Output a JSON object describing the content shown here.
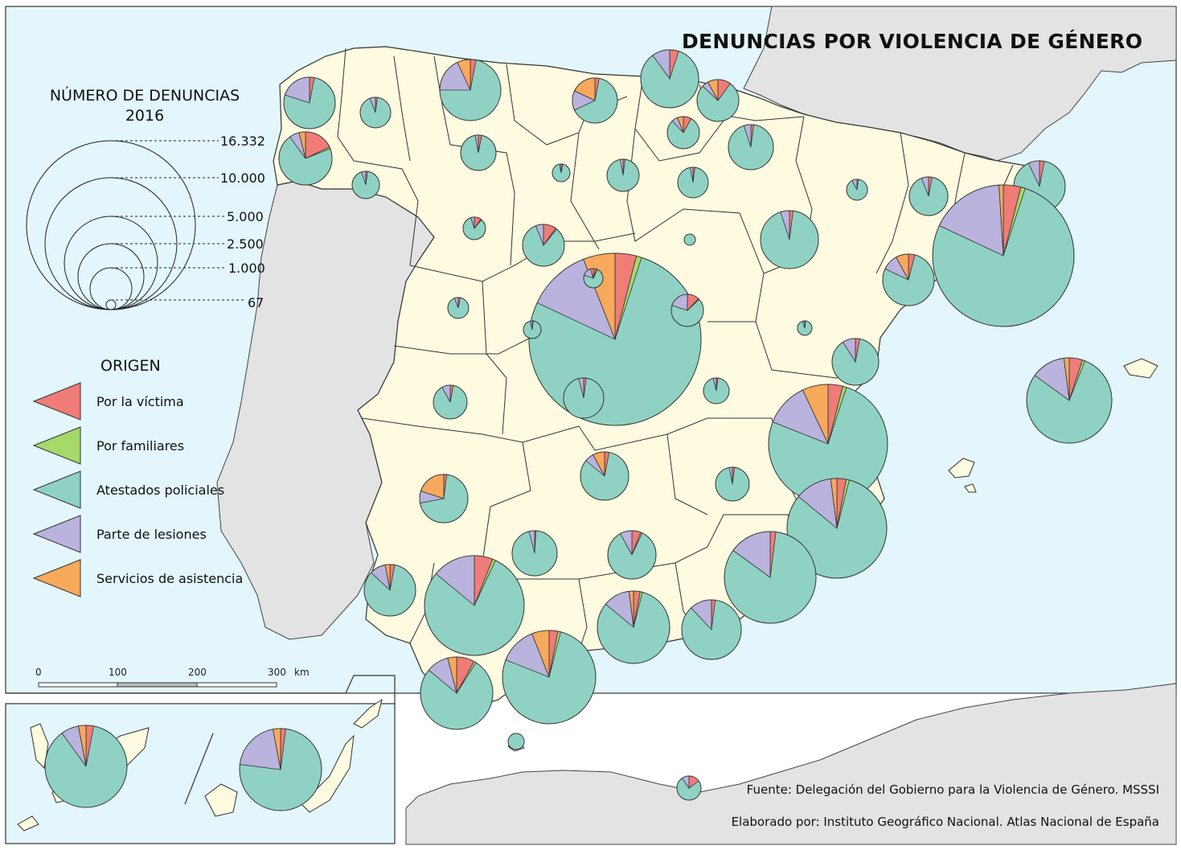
{
  "title": "DENUNCIAS POR VIOLENCIA DE GÉNERO",
  "size_legend": {
    "heading_line1": "NÚMERO DE DENUNCIAS",
    "heading_line2": "2016",
    "values": [
      "16.332",
      "10.000",
      "5.000",
      "2.500",
      "1.000",
      "67"
    ]
  },
  "origin_legend": {
    "heading": "ORIGEN",
    "items": [
      {
        "key": "victima",
        "label": "Por la víctima",
        "color": "#f07c78"
      },
      {
        "key": "familiares",
        "label": "Por familiares",
        "color": "#a6d86a"
      },
      {
        "key": "atestados",
        "label": "Atestados policiales",
        "color": "#8fd2c4"
      },
      {
        "key": "lesiones",
        "label": "Parte de lesiones",
        "color": "#b9b3dd"
      },
      {
        "key": "asistencia",
        "label": "Servicios de asistencia",
        "color": "#f7a95c"
      }
    ]
  },
  "scale_bar": {
    "labels": [
      "0",
      "100",
      "200",
      "300"
    ],
    "unit": "km"
  },
  "credits": {
    "source": "Fuente: Delegación del Gobierno para la Violencia de Género. MSSSI",
    "made_by": "Elaborado por: Instituto Geográfico Nacional. Atlas Nacional de España"
  },
  "colors": {
    "sea": "#e3f6fb",
    "land_spain": "#fffbe1",
    "land_other": "#e3e3e3",
    "border": "#333333"
  }
}
